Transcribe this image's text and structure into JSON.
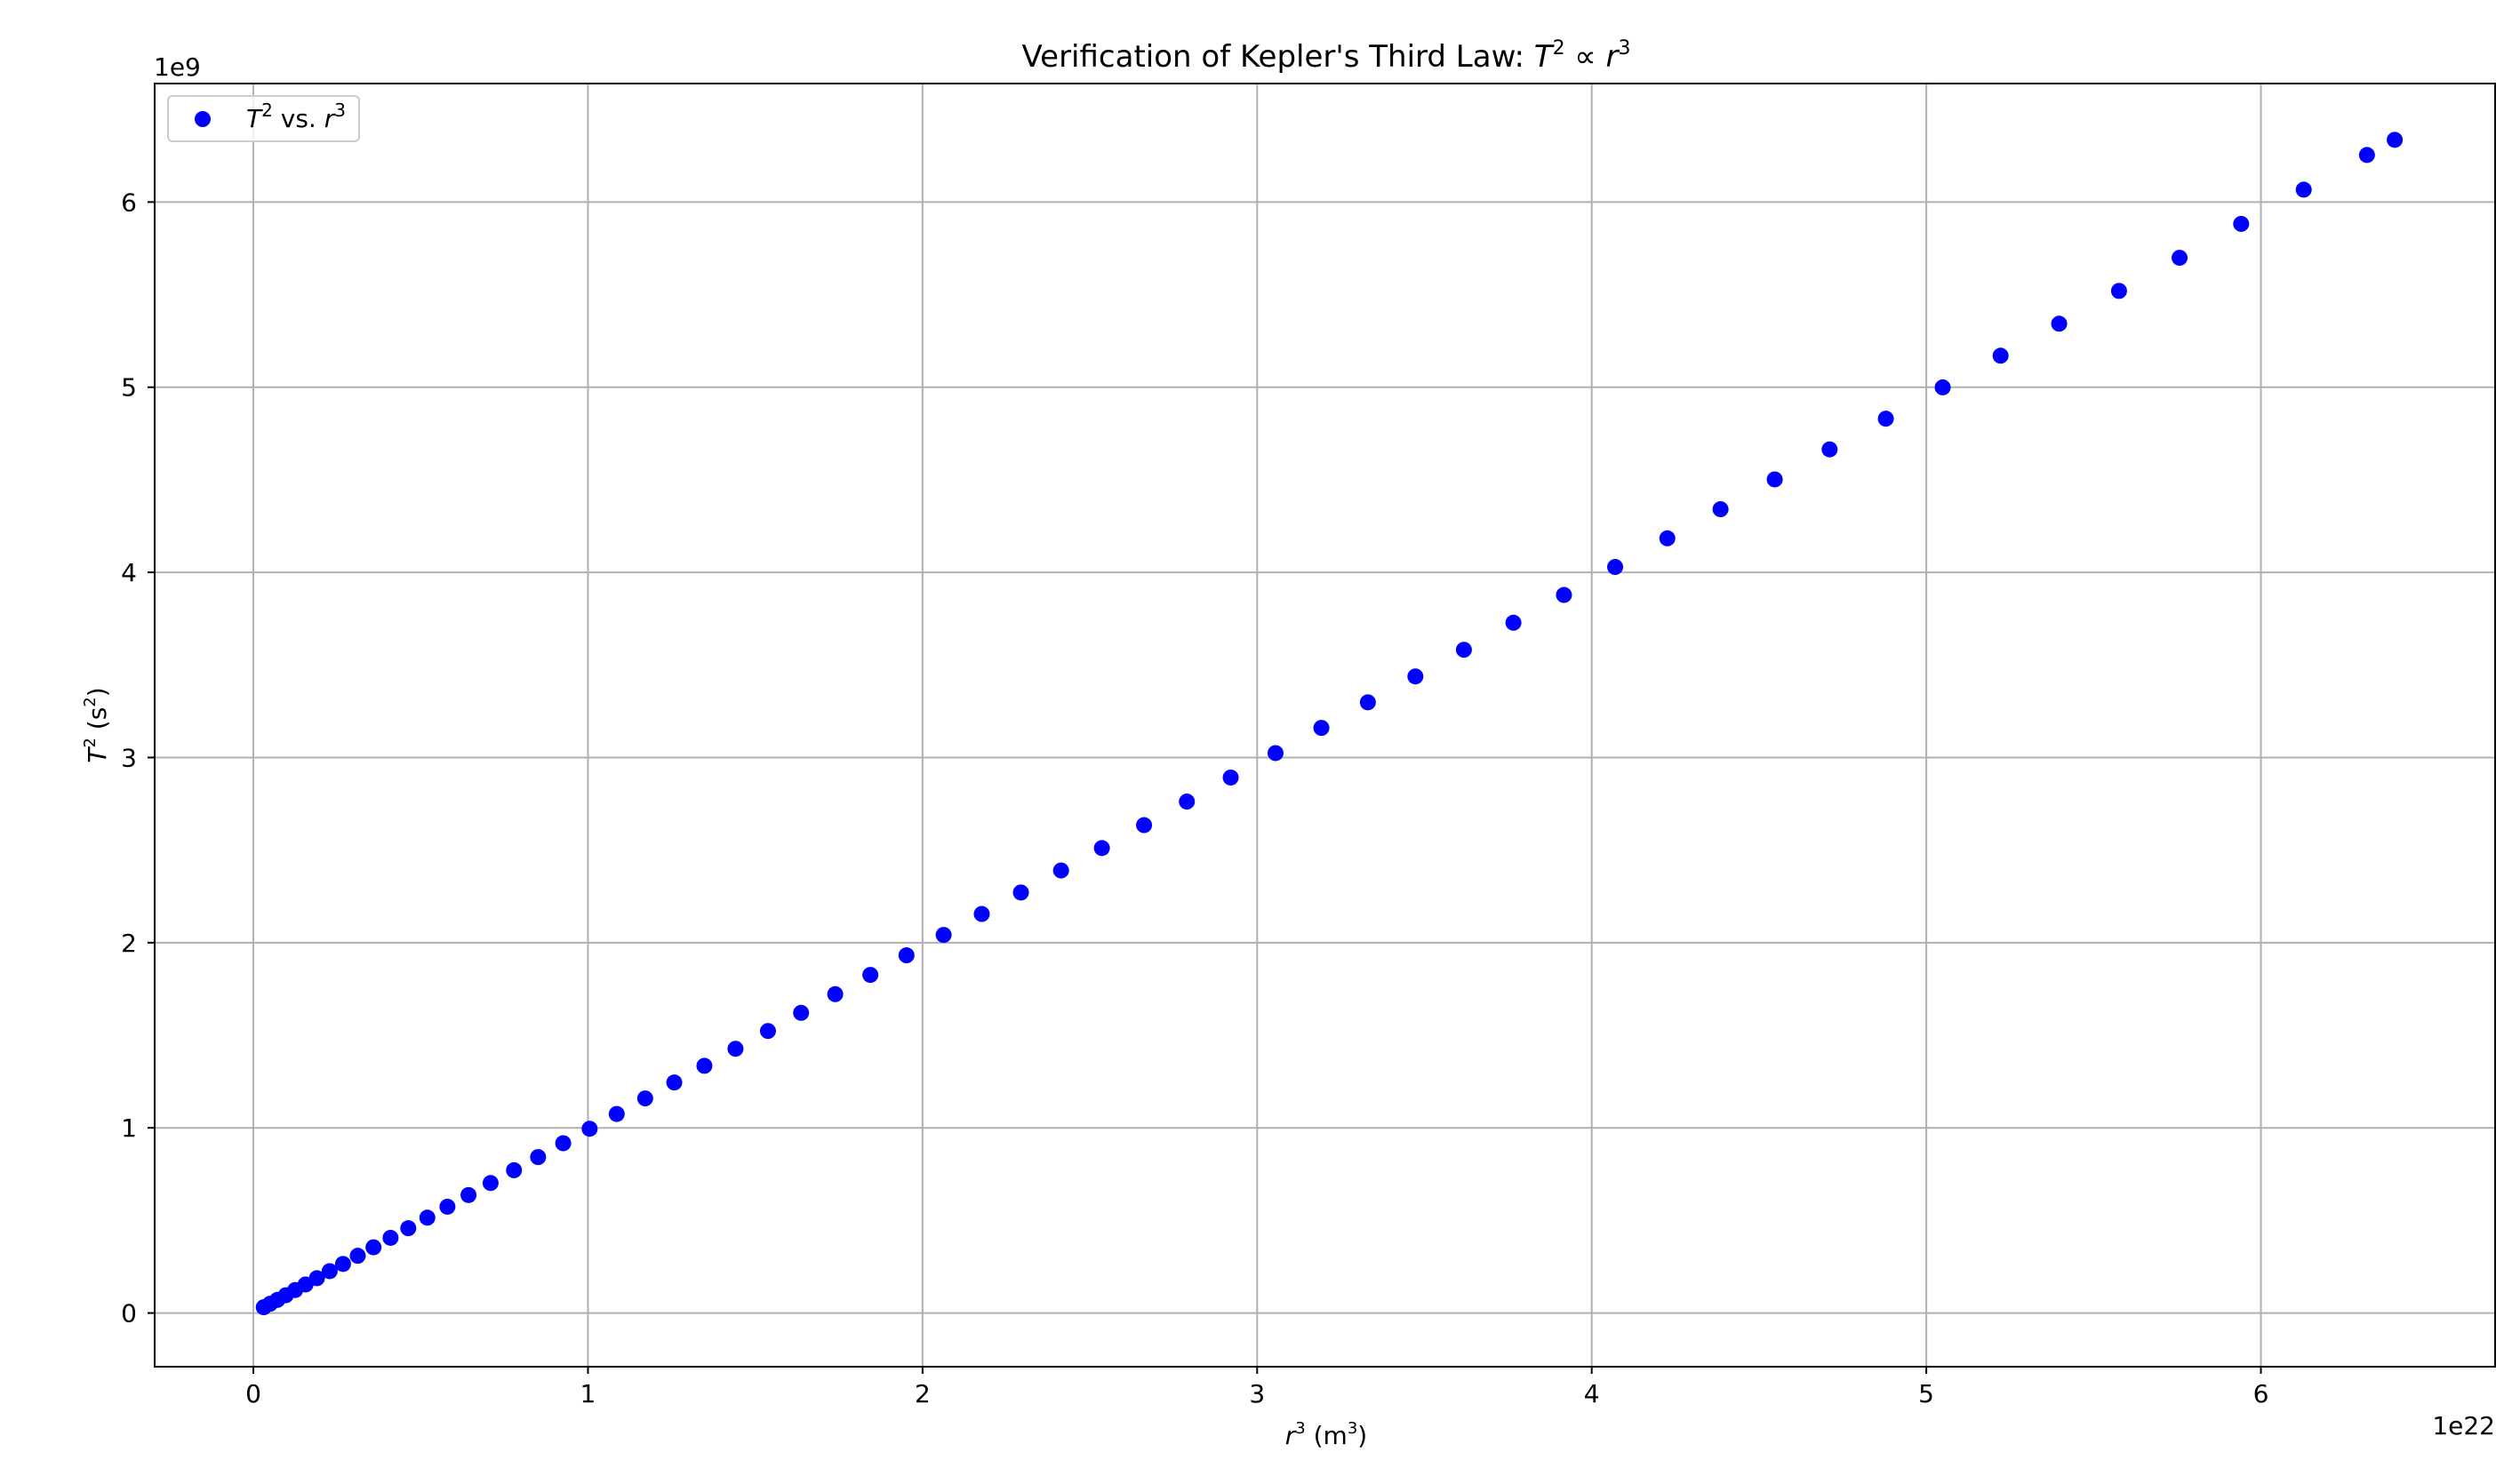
{
  "chart_data": {
    "type": "scatter",
    "title": {
      "prefix": "Verification of Kepler's Third Law: ",
      "lhs_var": "T",
      "lhs_exp": "2",
      "relation": " ∝ ",
      "rhs_var": "r",
      "rhs_exp": "3"
    },
    "xlabel": {
      "var": "r",
      "exp": "3",
      "unit_open": " (m",
      "unit_exp": "3",
      "unit_close": ")"
    },
    "ylabel": {
      "var": "T",
      "exp": "2",
      "unit_open": " (s",
      "unit_exp": "2",
      "unit_close": ")"
    },
    "x_offset_label": "1e22",
    "y_offset_label": "1e9",
    "x_multiplier": 1e+22,
    "y_multiplier": 1000000000.0,
    "xlim": [
      -0.295,
      6.7
    ],
    "ylim": [
      -0.29,
      6.64
    ],
    "xticks": [
      0,
      1,
      2,
      3,
      4,
      5,
      6
    ],
    "xtick_labels": [
      "0",
      "1",
      "2",
      "3",
      "4",
      "5",
      "6"
    ],
    "yticks": [
      0,
      1,
      2,
      3,
      4,
      5,
      6
    ],
    "ytick_labels": [
      "0",
      "1",
      "2",
      "3",
      "4",
      "5",
      "6"
    ],
    "grid": true,
    "legend": {
      "placement": "top-left",
      "entry": {
        "var": "T",
        "exp": "2",
        "mid": " vs. ",
        "var2": "r",
        "exp2": "3"
      }
    },
    "series": [
      {
        "name": "T² vs. r³",
        "color": "#0000ff",
        "slope": 0.99,
        "x": [
          0.031,
          0.05,
          0.072,
          0.097,
          0.125,
          0.156,
          0.19,
          0.228,
          0.268,
          0.312,
          0.359,
          0.41,
          0.463,
          0.52,
          0.58,
          0.643,
          0.709,
          0.779,
          0.851,
          0.926,
          1.005,
          1.086,
          1.171,
          1.258,
          1.348,
          1.441,
          1.538,
          1.637,
          1.739,
          1.844,
          1.952,
          2.063,
          2.177,
          2.294,
          2.414,
          2.536,
          2.662,
          2.79,
          2.921,
          3.055,
          3.192,
          3.331,
          3.473,
          3.618,
          3.766,
          3.917,
          4.07,
          4.226,
          4.385,
          4.547,
          4.711,
          4.879,
          5.049,
          5.222,
          5.397,
          5.576,
          5.757,
          5.941,
          6.128,
          6.317,
          6.4
        ],
        "y": [
          0.031,
          0.05,
          0.071,
          0.096,
          0.124,
          0.154,
          0.188,
          0.226,
          0.265,
          0.309,
          0.355,
          0.406,
          0.458,
          0.515,
          0.574,
          0.637,
          0.702,
          0.771,
          0.842,
          0.917,
          0.995,
          1.075,
          1.159,
          1.245,
          1.335,
          1.427,
          1.523,
          1.621,
          1.722,
          1.826,
          1.932,
          2.042,
          2.155,
          2.271,
          2.39,
          2.511,
          2.635,
          2.762,
          2.892,
          3.024,
          3.16,
          3.298,
          3.438,
          3.582,
          3.728,
          3.878,
          4.029,
          4.184,
          4.341,
          4.502,
          4.664,
          4.83,
          4.999,
          5.17,
          5.343,
          5.52,
          5.699,
          5.882,
          6.067,
          6.254,
          6.336
        ]
      }
    ]
  }
}
